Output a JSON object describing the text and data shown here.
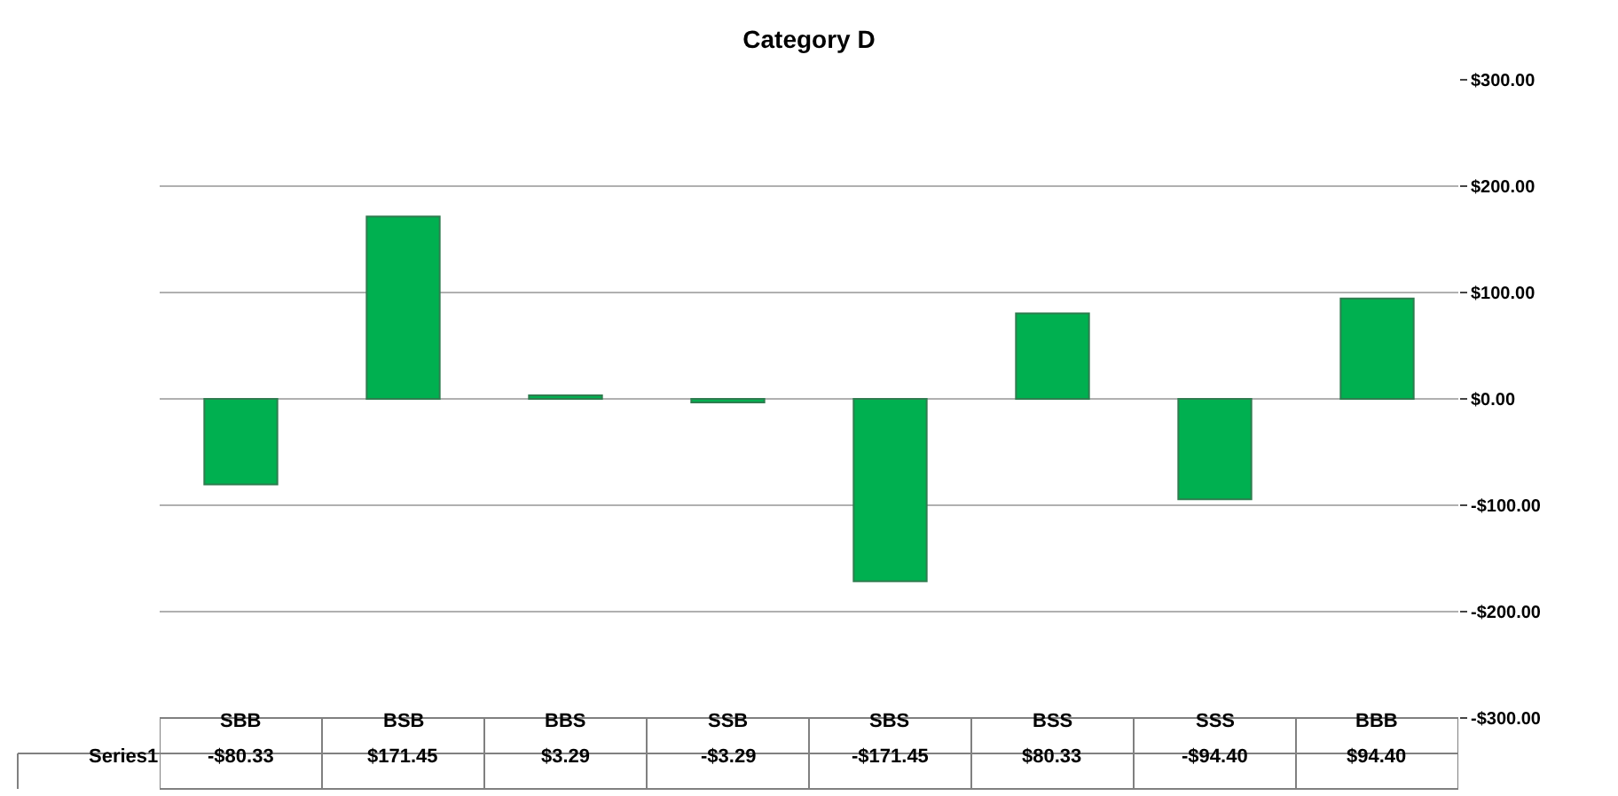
{
  "chart_data": {
    "type": "bar",
    "title": "Category D",
    "categories": [
      "SBB",
      "BSB",
      "BBS",
      "SSB",
      "SBS",
      "BSS",
      "SSS",
      "BBB"
    ],
    "series": [
      {
        "name": "Series1",
        "color": "#00b050",
        "values": [
          -80.33,
          171.45,
          3.29,
          -3.29,
          -171.45,
          80.33,
          -94.4,
          94.4
        ],
        "value_labels": [
          "-$80.33",
          "$171.45",
          "$3.29",
          "-$3.29",
          "-$171.45",
          "$80.33",
          "-$94.40",
          "$94.40"
        ]
      }
    ],
    "ylim": [
      -300,
      300
    ],
    "yticks": [
      {
        "value": -300,
        "label": "-$300.00"
      },
      {
        "value": -200,
        "label": "-$200.00"
      },
      {
        "value": -100,
        "label": "-$100.00"
      },
      {
        "value": 0,
        "label": "$0.00"
      },
      {
        "value": 100,
        "label": "$100.00"
      },
      {
        "value": 200,
        "label": "$200.00"
      },
      {
        "value": 300,
        "label": "$300.00"
      }
    ],
    "grid": "y",
    "legend": false
  }
}
